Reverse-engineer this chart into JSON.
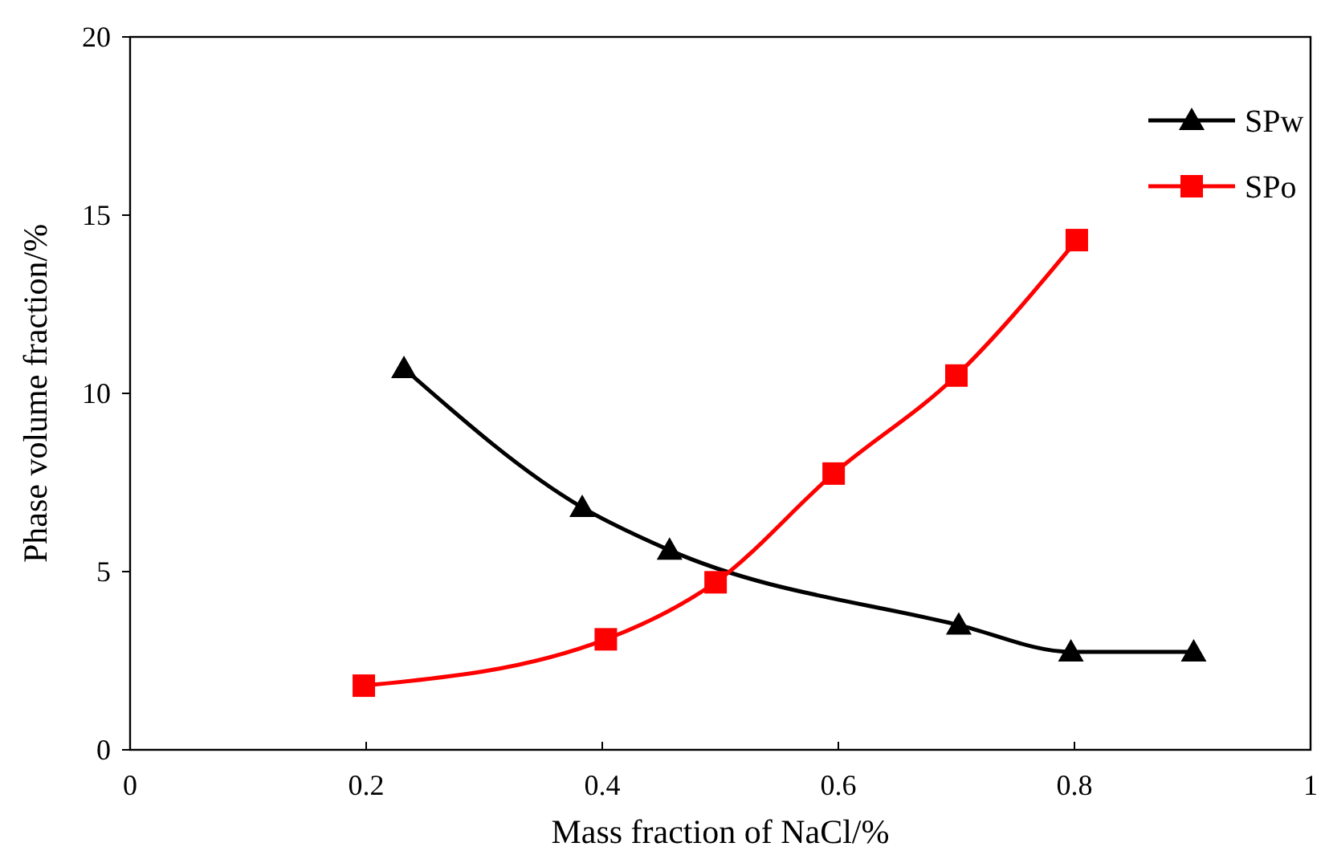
{
  "chart_data": {
    "type": "line",
    "xlabel": "Mass fraction of NaCl/%",
    "ylabel": "Phase volume fraction/%",
    "xlim": [
      0,
      1
    ],
    "xticks": [
      0,
      0.2,
      0.4,
      0.6,
      0.8,
      1
    ],
    "ylim": [
      0,
      20
    ],
    "yticks": [
      0,
      5,
      10,
      15,
      20
    ],
    "grid": false,
    "legend": "top right",
    "series": [
      {
        "name": "SPw",
        "color": "#000000",
        "marker": "triangle",
        "x": [
          0.232,
          0.383,
          0.457,
          0.702,
          0.797,
          0.901
        ],
        "values": [
          10.7,
          6.8,
          5.6,
          3.5,
          2.75,
          2.75
        ]
      },
      {
        "name": "SPo",
        "color": "#ff0000",
        "marker": "square",
        "x": [
          0.198,
          0.403,
          0.496,
          0.596,
          0.7,
          0.802
        ],
        "values": [
          1.8,
          3.1,
          4.7,
          7.75,
          10.5,
          14.3
        ]
      }
    ]
  }
}
